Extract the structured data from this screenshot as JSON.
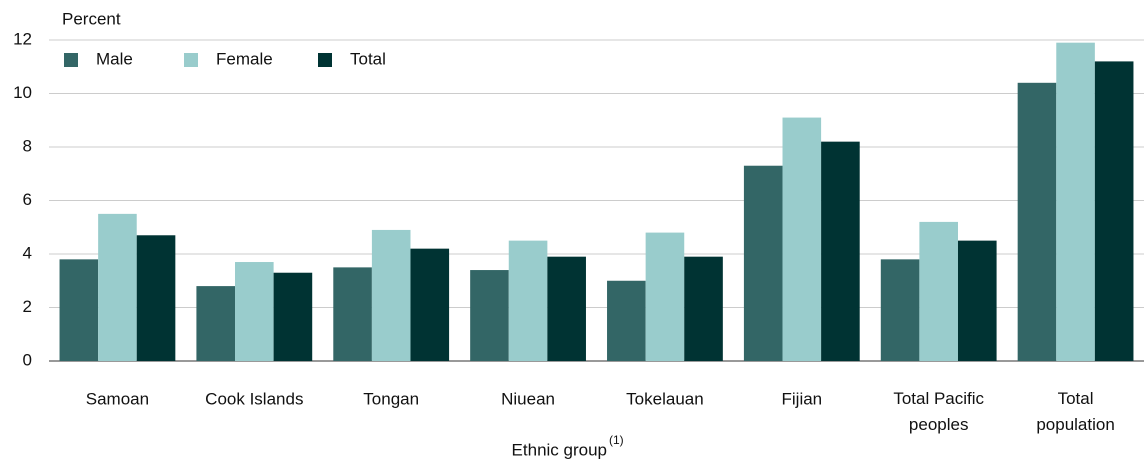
{
  "chart_data": {
    "type": "bar",
    "y_label": "Percent",
    "x_label": "Ethnic group",
    "x_label_note": "(1)",
    "categories": [
      "Samoan",
      "Cook Islands",
      "Tongan",
      "Niuean",
      "Tokelauan",
      "Fijian",
      "Total Pacific peoples",
      "Total population"
    ],
    "series": [
      {
        "name": "Male",
        "color": "#336666",
        "values": [
          3.8,
          2.8,
          3.5,
          3.4,
          3.0,
          7.3,
          3.8,
          10.4
        ]
      },
      {
        "name": "Female",
        "color": "#99cccc",
        "values": [
          5.5,
          3.7,
          4.9,
          4.5,
          4.8,
          9.1,
          5.2,
          11.9
        ]
      },
      {
        "name": "Total",
        "color": "#003333",
        "values": [
          4.7,
          3.3,
          4.2,
          3.9,
          3.9,
          8.2,
          4.5,
          11.2
        ]
      }
    ],
    "ylim": [
      0,
      12
    ],
    "yticks": [
      0,
      2,
      4,
      6,
      8,
      10,
      12
    ],
    "grid": true,
    "legend": "top-left"
  }
}
